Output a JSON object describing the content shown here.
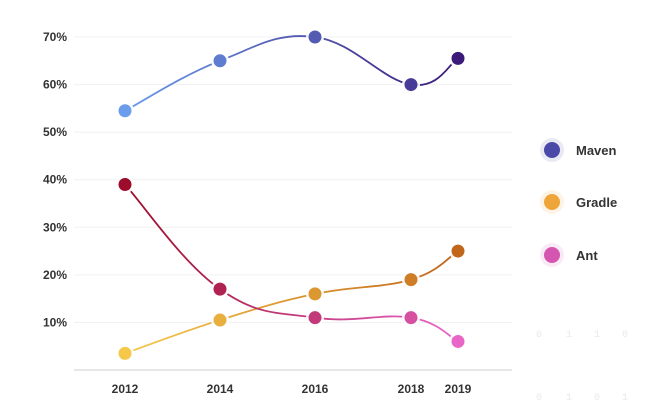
{
  "chart_data": {
    "type": "line",
    "title": "",
    "xlabel": "",
    "ylabel": "",
    "x": [
      2012,
      2014,
      2016,
      2018,
      2019
    ],
    "ylim": [
      0,
      70
    ],
    "yticks": [
      {
        "value": 10,
        "label": "10%"
      },
      {
        "value": 20,
        "label": "20%"
      },
      {
        "value": 30,
        "label": "30%"
      },
      {
        "value": 40,
        "label": "40%"
      },
      {
        "value": 50,
        "label": "50%"
      },
      {
        "value": 60,
        "label": "60%"
      },
      {
        "value": 70,
        "label": "70%"
      }
    ],
    "grid": true,
    "legend_position": "right",
    "series": [
      {
        "name": "Maven",
        "values": [
          54.5,
          65,
          70,
          60,
          65.5
        ],
        "color_start": "#6c9cec",
        "color_end": "#3b1a7a",
        "legend_color": "#4a49a8"
      },
      {
        "name": "Gradle",
        "values": [
          3.5,
          10.5,
          16,
          19,
          25
        ],
        "color_start": "#f6c84a",
        "color_end": "#c0651a",
        "legend_color": "#eea53a"
      },
      {
        "name": "Ant",
        "values": [
          39,
          17,
          11,
          11,
          6
        ],
        "color_start": "#9b0d2a",
        "color_end": "#e866c8",
        "legend_color": "#d456b0"
      }
    ]
  }
}
